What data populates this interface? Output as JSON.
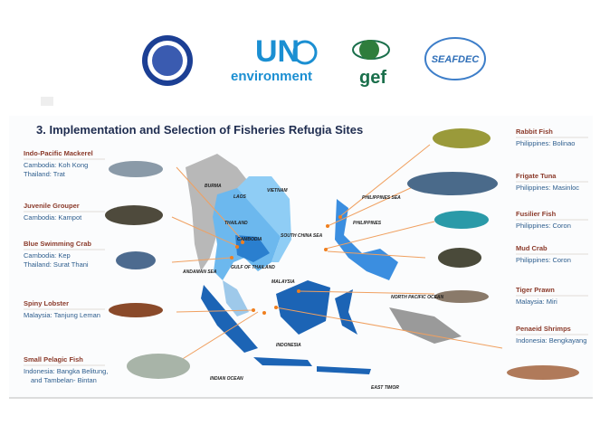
{
  "logos": {
    "un": "UN",
    "un_sub": "environment",
    "gef": "gef",
    "seafdec": "SEAFDEC"
  },
  "title": "3.  Implementation and Selection of Fisheries Refugia Sites",
  "left_sites": [
    {
      "species": "Indo-Pacific Mackerel",
      "locations": [
        "Cambodia:  Koh Kong",
        "Thailand:   Trat"
      ]
    },
    {
      "species": "Juvenile Grouper",
      "locations": [
        "Cambodia:  Kampot"
      ]
    },
    {
      "species": "Blue Swimming Crab",
      "locations": [
        "Cambodia:  Kep",
        "Thailand:  Surat Thani"
      ]
    },
    {
      "species": "Spiny Lobster",
      "locations": [
        "Malaysia:  Tanjung Leman"
      ]
    },
    {
      "species": "Small Pelagic Fish",
      "locations": [
        "Indonesia:  Bangka Belitung,",
        "and  Tambelan- Bintan"
      ]
    }
  ],
  "right_sites": [
    {
      "species": "Rabbit Fish",
      "locations": [
        "Philippines:  Bolinao"
      ]
    },
    {
      "species": "Frigate Tuna",
      "locations": [
        "Philippines:  Masinloc"
      ]
    },
    {
      "species": "Fusilier Fish",
      "locations": [
        "Philippines:  Coron"
      ]
    },
    {
      "species": "Mud Crab",
      "locations": [
        "Philippines:  Coron"
      ]
    },
    {
      "species": "Tiger Prawn",
      "locations": [
        "Malaysia:  Miri"
      ]
    },
    {
      "species": "Penaeid Shrimps",
      "locations": [
        "Indonesia:  Bengkayang"
      ]
    }
  ],
  "map_labels": [
    "BURMA",
    "LAOS",
    "VIETNAM",
    "THAILAND",
    "CAMBODIA",
    "GULF OF THAILAND",
    "SOUTH CHINA SEA",
    "PHILIPPINES SEA",
    "PHILIPPINES",
    "ANDAMAN SEA",
    "MALAYSIA",
    "NORTH PACIFIC OCEAN",
    "INDONESIA",
    "INDIAN OCEAN",
    "EAST TIMOR"
  ]
}
